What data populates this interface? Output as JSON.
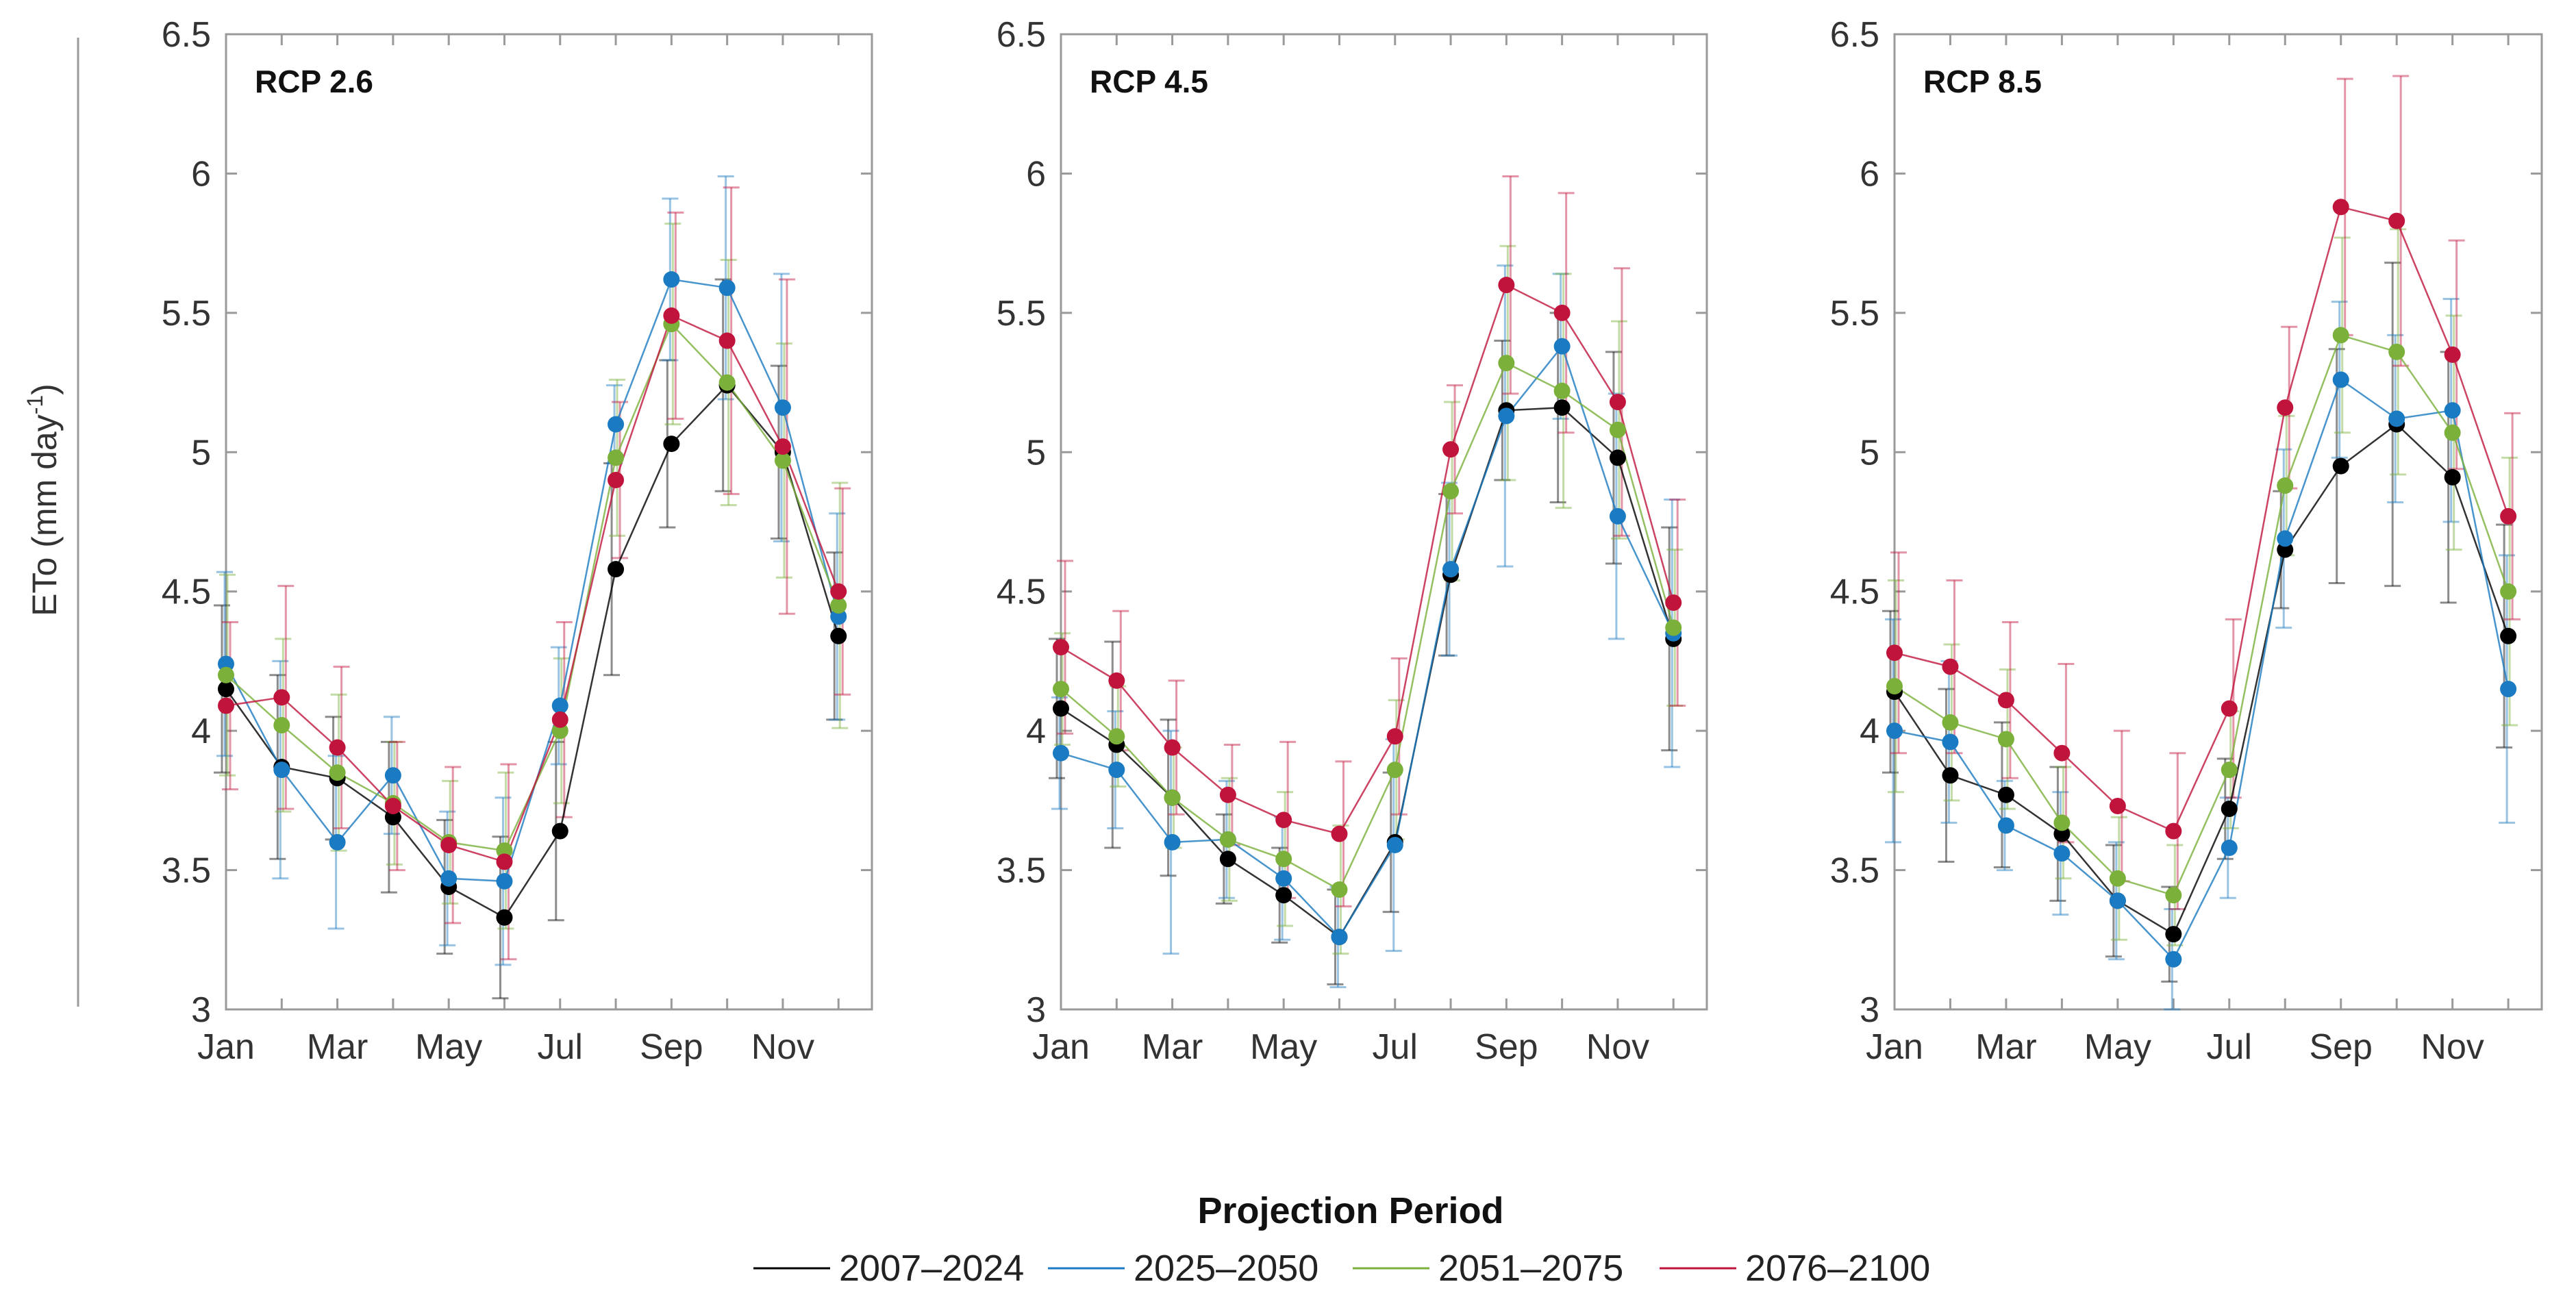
{
  "figure": {
    "ylabel_main": "ETo (mm day",
    "ylabel_sup": "-1",
    "ylabel_end": ")",
    "legend_title": "Projection Period"
  },
  "chart_data": [
    {
      "type": "line",
      "title": "RCP 2.6",
      "xlabel": "",
      "ylabel": "ETo (mm day-1)",
      "ylim": [
        3,
        6.5
      ],
      "yticks": [
        3,
        3.5,
        4,
        4.5,
        5,
        5.5,
        6,
        6.5
      ],
      "ytick_labels": [
        "3",
        "3.5",
        "4",
        "4.5",
        "5",
        "5.5",
        "6",
        "6.5"
      ],
      "x": [
        1,
        2,
        3,
        4,
        5,
        6,
        7,
        8,
        9,
        10,
        11,
        12
      ],
      "xlim": [
        1,
        12.6
      ],
      "xtick_positions": [
        1,
        3,
        5,
        7,
        9,
        11
      ],
      "xtick_labels": [
        "Jan",
        "Mar",
        "May",
        "Jul",
        "Sep",
        "Nov"
      ],
      "series": [
        {
          "name": "2007–2024",
          "color": "#000000",
          "values": [
            4.15,
            3.87,
            3.83,
            3.69,
            3.44,
            3.33,
            3.64,
            4.58,
            5.03,
            5.24,
            5.0,
            4.34
          ],
          "err": [
            0.3,
            0.33,
            0.22,
            0.27,
            0.24,
            0.29,
            0.32,
            0.38,
            0.3,
            0.38,
            0.31,
            0.3
          ]
        },
        {
          "name": "2025–2050",
          "color": "#1a7ac2",
          "values": [
            4.24,
            3.86,
            3.6,
            3.84,
            3.47,
            3.46,
            4.09,
            5.1,
            5.62,
            5.59,
            5.16,
            4.41
          ],
          "err": [
            0.33,
            0.39,
            0.31,
            0.21,
            0.24,
            0.3,
            0.21,
            0.14,
            0.29,
            0.4,
            0.48,
            0.37
          ]
        },
        {
          "name": "2051–2075",
          "color": "#7bb03a",
          "values": [
            4.2,
            4.02,
            3.85,
            3.74,
            3.6,
            3.57,
            4.0,
            4.98,
            5.46,
            5.25,
            4.97,
            4.45
          ],
          "err": [
            0.36,
            0.31,
            0.28,
            0.22,
            0.22,
            0.28,
            0.26,
            0.28,
            0.36,
            0.44,
            0.42,
            0.44
          ]
        },
        {
          "name": "2076–2100",
          "color": "#c0143c",
          "values": [
            4.09,
            4.12,
            3.94,
            3.73,
            3.59,
            3.53,
            4.04,
            4.9,
            5.49,
            5.4,
            5.02,
            4.5
          ],
          "err": [
            0.3,
            0.4,
            0.29,
            0.23,
            0.28,
            0.35,
            0.35,
            0.28,
            0.37,
            0.55,
            0.6,
            0.37
          ]
        }
      ]
    },
    {
      "type": "line",
      "title": "RCP 4.5",
      "xlabel": "",
      "ylabel": "",
      "ylim": [
        3,
        6.5
      ],
      "yticks": [
        3,
        3.5,
        4,
        4.5,
        5,
        5.5,
        6,
        6.5
      ],
      "ytick_labels": [
        "3",
        "3.5",
        "4",
        "4.5",
        "5",
        "5.5",
        "6",
        "6.5"
      ],
      "x": [
        1,
        2,
        3,
        4,
        5,
        6,
        7,
        8,
        9,
        10,
        11,
        12
      ],
      "xlim": [
        1,
        12.6
      ],
      "xtick_positions": [
        1,
        3,
        5,
        7,
        9,
        11
      ],
      "xtick_labels": [
        "Jan",
        "Mar",
        "May",
        "Jul",
        "Sep",
        "Nov"
      ],
      "series": [
        {
          "name": "2007–2024",
          "color": "#000000",
          "values": [
            4.08,
            3.95,
            3.76,
            3.54,
            3.41,
            3.26,
            3.6,
            4.56,
            5.15,
            5.16,
            4.98,
            4.33
          ],
          "err": [
            0.25,
            0.37,
            0.28,
            0.16,
            0.17,
            0.17,
            0.25,
            0.29,
            0.25,
            0.34,
            0.38,
            0.4
          ]
        },
        {
          "name": "2025–2050",
          "color": "#1a7ac2",
          "values": [
            3.92,
            3.86,
            3.6,
            3.61,
            3.47,
            3.26,
            3.59,
            4.58,
            5.13,
            5.38,
            4.77,
            4.35
          ],
          "err": [
            0.2,
            0.21,
            0.4,
            0.21,
            0.22,
            0.18,
            0.38,
            0.31,
            0.54,
            0.26,
            0.44,
            0.48
          ]
        },
        {
          "name": "2051–2075",
          "color": "#7bb03a",
          "values": [
            4.15,
            3.98,
            3.76,
            3.61,
            3.54,
            3.43,
            3.86,
            4.86,
            5.32,
            5.22,
            5.08,
            4.37
          ],
          "err": [
            0.2,
            0.18,
            0.18,
            0.22,
            0.24,
            0.23,
            0.25,
            0.32,
            0.42,
            0.42,
            0.39,
            0.28
          ]
        },
        {
          "name": "2076–2100",
          "color": "#c0143c",
          "values": [
            4.3,
            4.18,
            3.94,
            3.77,
            3.68,
            3.63,
            3.98,
            5.01,
            5.6,
            5.5,
            5.18,
            4.46
          ],
          "err": [
            0.31,
            0.25,
            0.24,
            0.18,
            0.28,
            0.26,
            0.28,
            0.23,
            0.39,
            0.43,
            0.48,
            0.37
          ]
        }
      ]
    },
    {
      "type": "line",
      "title": "RCP 8.5",
      "xlabel": "",
      "ylabel": "",
      "ylim": [
        3,
        6.5
      ],
      "yticks": [
        3,
        3.5,
        4,
        4.5,
        5,
        5.5,
        6,
        6.5
      ],
      "ytick_labels": [
        "3",
        "3.5",
        "4",
        "4.5",
        "5",
        "5.5",
        "6",
        "6.5"
      ],
      "x": [
        1,
        2,
        3,
        4,
        5,
        6,
        7,
        8,
        9,
        10,
        11,
        12
      ],
      "xlim": [
        1,
        12.6
      ],
      "xtick_positions": [
        1,
        3,
        5,
        7,
        9,
        11
      ],
      "xtick_labels": [
        "Jan",
        "Mar",
        "May",
        "Jul",
        "Sep",
        "Nov"
      ],
      "series": [
        {
          "name": "2007–2024",
          "color": "#000000",
          "values": [
            4.14,
            3.84,
            3.77,
            3.63,
            3.39,
            3.27,
            3.72,
            4.65,
            4.95,
            5.1,
            4.91,
            4.34
          ],
          "err": [
            0.29,
            0.31,
            0.26,
            0.24,
            0.2,
            0.17,
            0.18,
            0.21,
            0.42,
            0.58,
            0.45,
            0.4
          ]
        },
        {
          "name": "2025–2050",
          "color": "#1a7ac2",
          "values": [
            4.0,
            3.96,
            3.66,
            3.56,
            3.39,
            3.18,
            3.58,
            4.69,
            5.26,
            5.12,
            5.15,
            4.15
          ],
          "err": [
            0.4,
            0.29,
            0.16,
            0.22,
            0.21,
            0.18,
            0.18,
            0.32,
            0.28,
            0.3,
            0.4,
            0.48
          ]
        },
        {
          "name": "2051–2075",
          "color": "#7bb03a",
          "values": [
            4.16,
            4.03,
            3.97,
            3.67,
            3.47,
            3.41,
            3.86,
            4.88,
            5.42,
            5.36,
            5.07,
            4.5
          ],
          "err": [
            0.38,
            0.28,
            0.25,
            0.2,
            0.22,
            0.18,
            0.21,
            0.25,
            0.35,
            0.44,
            0.42,
            0.48
          ]
        },
        {
          "name": "2076–2100",
          "color": "#c0143c",
          "values": [
            4.28,
            4.23,
            4.11,
            3.92,
            3.73,
            3.64,
            4.08,
            5.16,
            5.88,
            5.83,
            5.35,
            4.77
          ],
          "err": [
            0.36,
            0.31,
            0.28,
            0.32,
            0.27,
            0.28,
            0.32,
            0.29,
            0.46,
            0.52,
            0.41,
            0.37
          ]
        }
      ]
    }
  ]
}
